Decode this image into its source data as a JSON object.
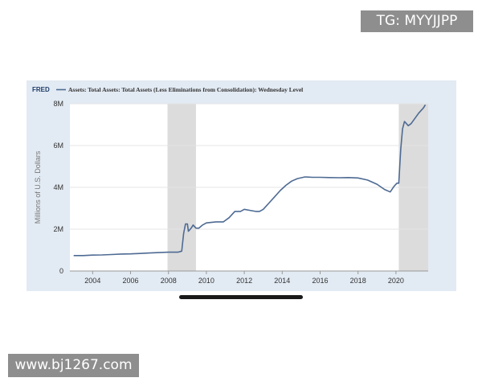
{
  "watermarks": {
    "top": "TG: MYYJJPP",
    "bottom": "www.bj1267.com"
  },
  "logo": "FRED",
  "colors": {
    "series": "#4e6a93",
    "recession": "#dcdcdc",
    "frame": "#e2eaf3",
    "plot": "#ffffff"
  },
  "chart_data": {
    "type": "line",
    "title": "Assets: Total Assets: Total Assets (Less Eliminations from Consolidation): Wednesday Level",
    "xlabel": "",
    "ylabel": "Millions of U.S. Dollars",
    "xlim": [
      2002.8,
      2021.7
    ],
    "ylim": [
      0,
      8
    ],
    "x_ticks": [
      2004,
      2006,
      2008,
      2010,
      2012,
      2014,
      2016,
      2018,
      2020
    ],
    "y_ticks": [
      {
        "value": 0,
        "label": "0"
      },
      {
        "value": 2,
        "label": "2M"
      },
      {
        "value": 4,
        "label": "4M"
      },
      {
        "value": 6,
        "label": "6M"
      },
      {
        "value": 8,
        "label": "8M"
      }
    ],
    "grid": true,
    "legend_placement": "top-left",
    "recessions": [
      {
        "start": 2007.95,
        "end": 2009.45
      },
      {
        "start": 2020.15,
        "end": 2021.7
      }
    ],
    "series": [
      {
        "name": "Assets: Total Assets: Total Assets (Less Eliminations from Consolidation): Wednesday Level",
        "unit": "millions (M)",
        "points": [
          [
            2003.0,
            0.74
          ],
          [
            2003.5,
            0.74
          ],
          [
            2004.0,
            0.76
          ],
          [
            2004.5,
            0.77
          ],
          [
            2005.0,
            0.79
          ],
          [
            2005.5,
            0.81
          ],
          [
            2006.0,
            0.82
          ],
          [
            2006.5,
            0.84
          ],
          [
            2007.0,
            0.86
          ],
          [
            2007.5,
            0.88
          ],
          [
            2008.0,
            0.9
          ],
          [
            2008.5,
            0.9
          ],
          [
            2008.7,
            0.95
          ],
          [
            2008.8,
            1.8
          ],
          [
            2008.9,
            2.25
          ],
          [
            2009.0,
            2.25
          ],
          [
            2009.05,
            1.9
          ],
          [
            2009.2,
            2.05
          ],
          [
            2009.3,
            2.2
          ],
          [
            2009.45,
            2.05
          ],
          [
            2009.6,
            2.05
          ],
          [
            2009.8,
            2.2
          ],
          [
            2010.0,
            2.3
          ],
          [
            2010.5,
            2.35
          ],
          [
            2010.9,
            2.35
          ],
          [
            2011.2,
            2.55
          ],
          [
            2011.5,
            2.85
          ],
          [
            2011.8,
            2.85
          ],
          [
            2012.0,
            2.95
          ],
          [
            2012.3,
            2.9
          ],
          [
            2012.6,
            2.85
          ],
          [
            2012.8,
            2.85
          ],
          [
            2013.0,
            2.95
          ],
          [
            2013.3,
            3.25
          ],
          [
            2013.6,
            3.55
          ],
          [
            2013.9,
            3.85
          ],
          [
            2014.2,
            4.1
          ],
          [
            2014.5,
            4.3
          ],
          [
            2014.8,
            4.42
          ],
          [
            2015.2,
            4.5
          ],
          [
            2015.6,
            4.48
          ],
          [
            2016.0,
            4.48
          ],
          [
            2016.5,
            4.47
          ],
          [
            2017.0,
            4.46
          ],
          [
            2017.5,
            4.47
          ],
          [
            2018.0,
            4.45
          ],
          [
            2018.5,
            4.35
          ],
          [
            2019.0,
            4.15
          ],
          [
            2019.4,
            3.9
          ],
          [
            2019.7,
            3.78
          ],
          [
            2019.9,
            4.05
          ],
          [
            2020.05,
            4.2
          ],
          [
            2020.15,
            4.2
          ],
          [
            2020.25,
            5.8
          ],
          [
            2020.35,
            6.8
          ],
          [
            2020.45,
            7.15
          ],
          [
            2020.55,
            7.05
          ],
          [
            2020.65,
            6.95
          ],
          [
            2020.8,
            7.05
          ],
          [
            2021.0,
            7.3
          ],
          [
            2021.2,
            7.55
          ],
          [
            2021.45,
            7.8
          ],
          [
            2021.55,
            7.95
          ]
        ]
      }
    ]
  }
}
